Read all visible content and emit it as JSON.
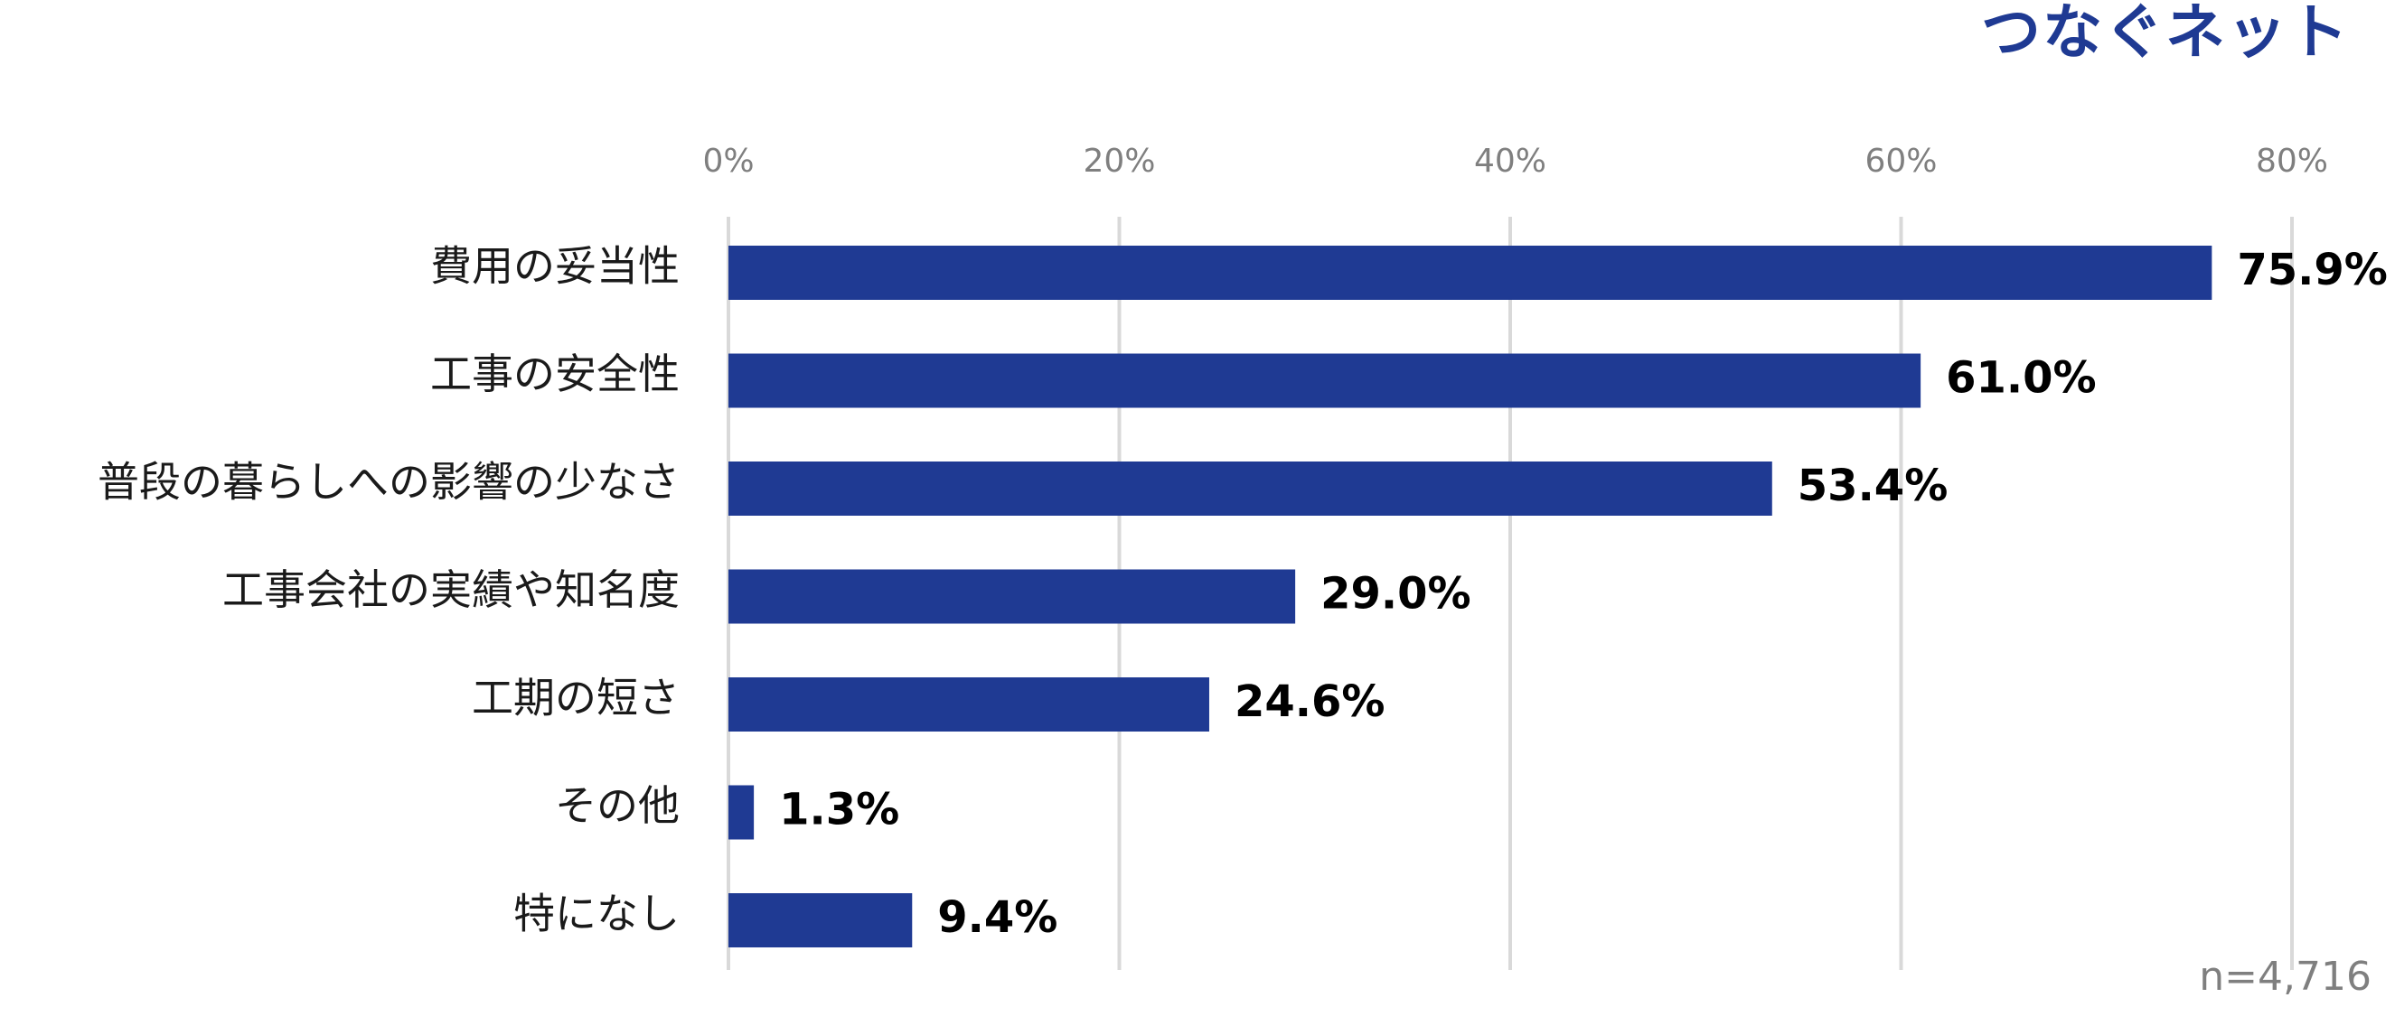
{
  "brand": {
    "logo_text": "つなぐネット",
    "color": "#1f3a93"
  },
  "chart_data": {
    "type": "bar",
    "orientation": "horizontal",
    "categories": [
      "費用の妥当性",
      "工事の安全性",
      "普段の暮らしへの影響の少なさ",
      "工事会社の実績や知名度",
      "工期の短さ",
      "その他",
      "特になし"
    ],
    "values": [
      75.9,
      61.0,
      53.4,
      29.0,
      24.6,
      1.3,
      9.4
    ],
    "value_labels": [
      "75.9%",
      "61.0%",
      "53.4%",
      "29.0%",
      "24.6%",
      "1.3%",
      "9.4%"
    ],
    "xlim": [
      0,
      80
    ],
    "x_ticks": [
      0,
      20,
      40,
      60,
      80
    ],
    "x_tick_labels": [
      "0%",
      "20%",
      "40%",
      "60%",
      "80%"
    ],
    "x_axis_position": "top",
    "grid": true,
    "legend": "none",
    "sample_note": "n=4,716",
    "colors": {
      "bar": "#1f3a93",
      "grid": "#d9d9d9",
      "tick_text": "#7f7f7f",
      "category_text": "#1a1a1a",
      "value_text": "#000000",
      "note_text": "#7f7f7f"
    }
  }
}
